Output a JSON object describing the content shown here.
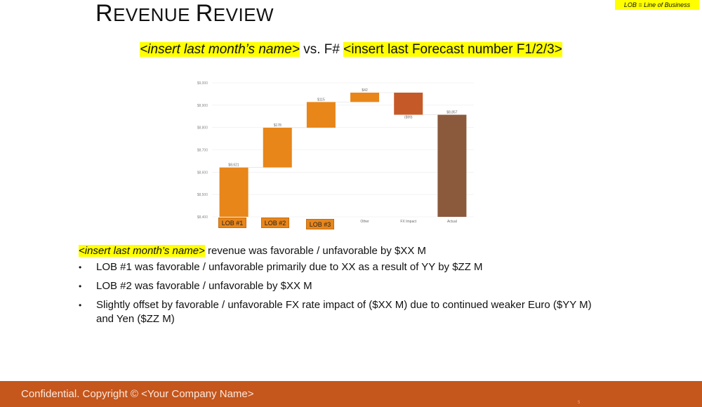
{
  "slide": {
    "title_first": "R",
    "title_rest": "EVENUE ",
    "title_first2": "R",
    "title_rest2": "EVIEW",
    "lob_note": "LOB = Line of Business",
    "subtitle": {
      "part1": "<insert last month’s name>",
      "part2": " vs. F# ",
      "part3": "<insert last Forecast number F1/2/3>"
    }
  },
  "colors": {
    "lob_orange": "#e8861a",
    "fx_impact": "#c55a28",
    "actual": "#8b5a3c",
    "highlight": "#ffff00",
    "footer": "#c5561c"
  },
  "chart_data": {
    "type": "bar",
    "subtype": "waterfall",
    "categories": [
      "LOB #1",
      "LOB #2",
      "LOB #3",
      "Other",
      "FX Impact",
      "Actual"
    ],
    "start_values": [
      0,
      8621,
      8799,
      8914,
      8956,
      0
    ],
    "values": [
      8621,
      178,
      115,
      42,
      -99,
      8857
    ],
    "data_labels": [
      "$8,621",
      "$178",
      "$115",
      "$42",
      "($99)",
      "$8,857"
    ],
    "bar_colors": [
      "#e8861a",
      "#e8861a",
      "#e8861a",
      "#e8861a",
      "#c55a28",
      "#8b5a3c"
    ],
    "ylim": [
      8400,
      9000
    ],
    "yticks": [
      8400,
      8500,
      8600,
      8700,
      8800,
      8900,
      9000
    ],
    "ytick_labels": [
      "$8,400",
      "$8,500",
      "$8,600",
      "$8,700",
      "$8,800",
      "$8,900",
      "$9,000"
    ],
    "grid": true,
    "title": "",
    "xlabel": "",
    "ylabel": ""
  },
  "body": {
    "summary_highlight": "<insert last month’s name>",
    "summary_rest": " revenue was favorable / unfavorable by $XX M",
    "bullets": [
      "LOB #1 was favorable / unfavorable primarily due to XX as a result of YY by $ZZ M",
      "LOB #2 was favorable / unfavorable by $XX M",
      "Slightly offset by favorable / unfavorable FX rate impact of ($XX M) due to continued weaker Euro ($YY M) and Yen ($ZZ M)"
    ],
    "bullet_glyph": "•"
  },
  "footer": {
    "text": "Confidential. Copyright © <Your Company Name>",
    "page_mark": "5"
  }
}
